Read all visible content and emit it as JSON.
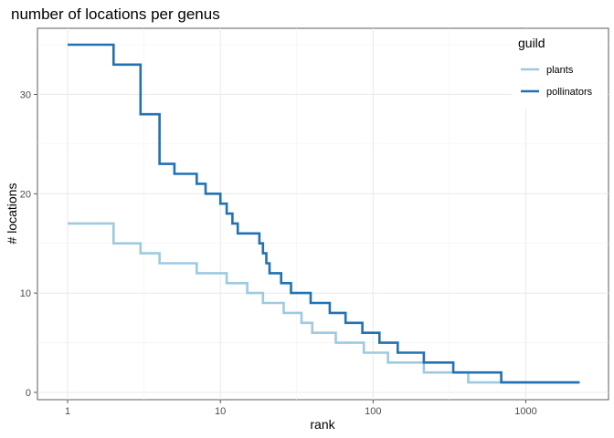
{
  "chart_data": {
    "type": "line",
    "title": "number of locations per genus",
    "xlabel": "rank",
    "ylabel": "# locations",
    "x_scale": "log10",
    "xlim": [
      1,
      2300
    ],
    "ylim": [
      0,
      36
    ],
    "x_ticks": [
      1,
      10,
      100,
      1000
    ],
    "x_tick_labels": [
      "1",
      "10",
      "100",
      "1000"
    ],
    "y_ticks": [
      0,
      10,
      20,
      30
    ],
    "y_tick_labels": [
      "0",
      "10",
      "20",
      "30"
    ],
    "grid": true,
    "legend": {
      "title": "guild",
      "position": "top-right"
    },
    "step": "hv",
    "series": [
      {
        "name": "plants",
        "color": "#9ecae1",
        "points": [
          [
            1,
            17
          ],
          [
            2,
            15
          ],
          [
            3,
            14
          ],
          [
            4,
            13
          ],
          [
            7,
            12
          ],
          [
            11,
            11
          ],
          [
            15,
            10
          ],
          [
            19,
            9
          ],
          [
            26,
            8
          ],
          [
            34,
            7
          ],
          [
            40,
            6
          ],
          [
            57,
            5
          ],
          [
            87,
            4
          ],
          [
            125,
            3
          ],
          [
            215,
            2
          ],
          [
            420,
            1
          ],
          [
            2250,
            1
          ]
        ]
      },
      {
        "name": "pollinators",
        "color": "#2171b5",
        "points": [
          [
            1,
            35
          ],
          [
            2,
            33
          ],
          [
            3,
            28
          ],
          [
            4,
            23
          ],
          [
            5,
            22
          ],
          [
            7,
            21
          ],
          [
            8,
            20
          ],
          [
            10,
            19
          ],
          [
            11,
            18
          ],
          [
            12,
            17
          ],
          [
            13,
            16
          ],
          [
            18,
            15
          ],
          [
            19,
            14
          ],
          [
            20,
            13
          ],
          [
            21,
            12
          ],
          [
            25,
            11
          ],
          [
            29,
            10
          ],
          [
            39,
            9
          ],
          [
            52,
            8
          ],
          [
            66,
            7
          ],
          [
            85,
            6
          ],
          [
            110,
            5
          ],
          [
            145,
            4
          ],
          [
            215,
            3
          ],
          [
            335,
            2
          ],
          [
            690,
            1
          ],
          [
            2250,
            1
          ]
        ]
      }
    ]
  }
}
